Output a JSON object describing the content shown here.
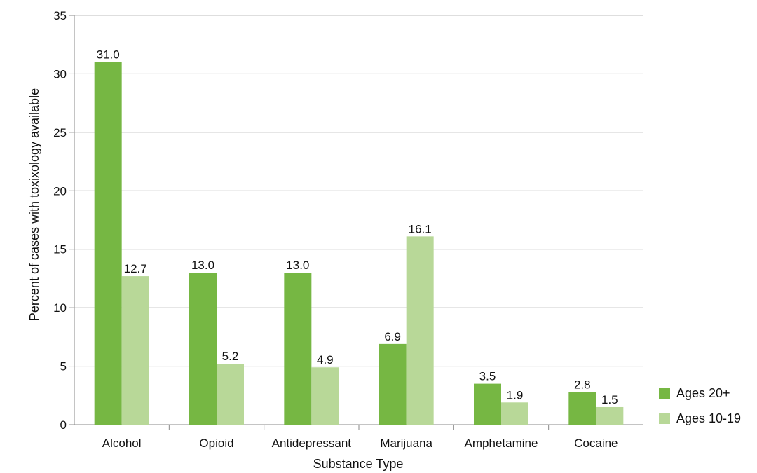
{
  "chart_data": {
    "type": "bar",
    "title": "",
    "xlabel": "Substance Type",
    "ylabel": "Percent of cases with toxixology available",
    "categories": [
      "Alcohol",
      "Opioid",
      "Antidepressant",
      "Marijuana",
      "Amphetamine",
      "Cocaine"
    ],
    "series": [
      {
        "name": "Ages 20+",
        "color": "#76b743",
        "values": [
          31.0,
          13.0,
          13.0,
          6.9,
          3.5,
          2.8
        ],
        "labels": [
          "31.0",
          "13.0",
          "13.0",
          "6.9",
          "3.5",
          "2.8"
        ]
      },
      {
        "name": "Ages 10-19",
        "color": "#b8d898",
        "values": [
          12.7,
          5.2,
          4.9,
          16.1,
          1.9,
          1.5
        ],
        "labels": [
          "12.7",
          "5.2",
          "4.9",
          "16.1",
          "1.9",
          "1.5"
        ]
      }
    ],
    "ylim": [
      0,
      35
    ],
    "yticks": [
      "0",
      "5",
      "10",
      "15",
      "20",
      "25",
      "30",
      "35"
    ],
    "grid": true,
    "legend_position": "right-bottom"
  }
}
